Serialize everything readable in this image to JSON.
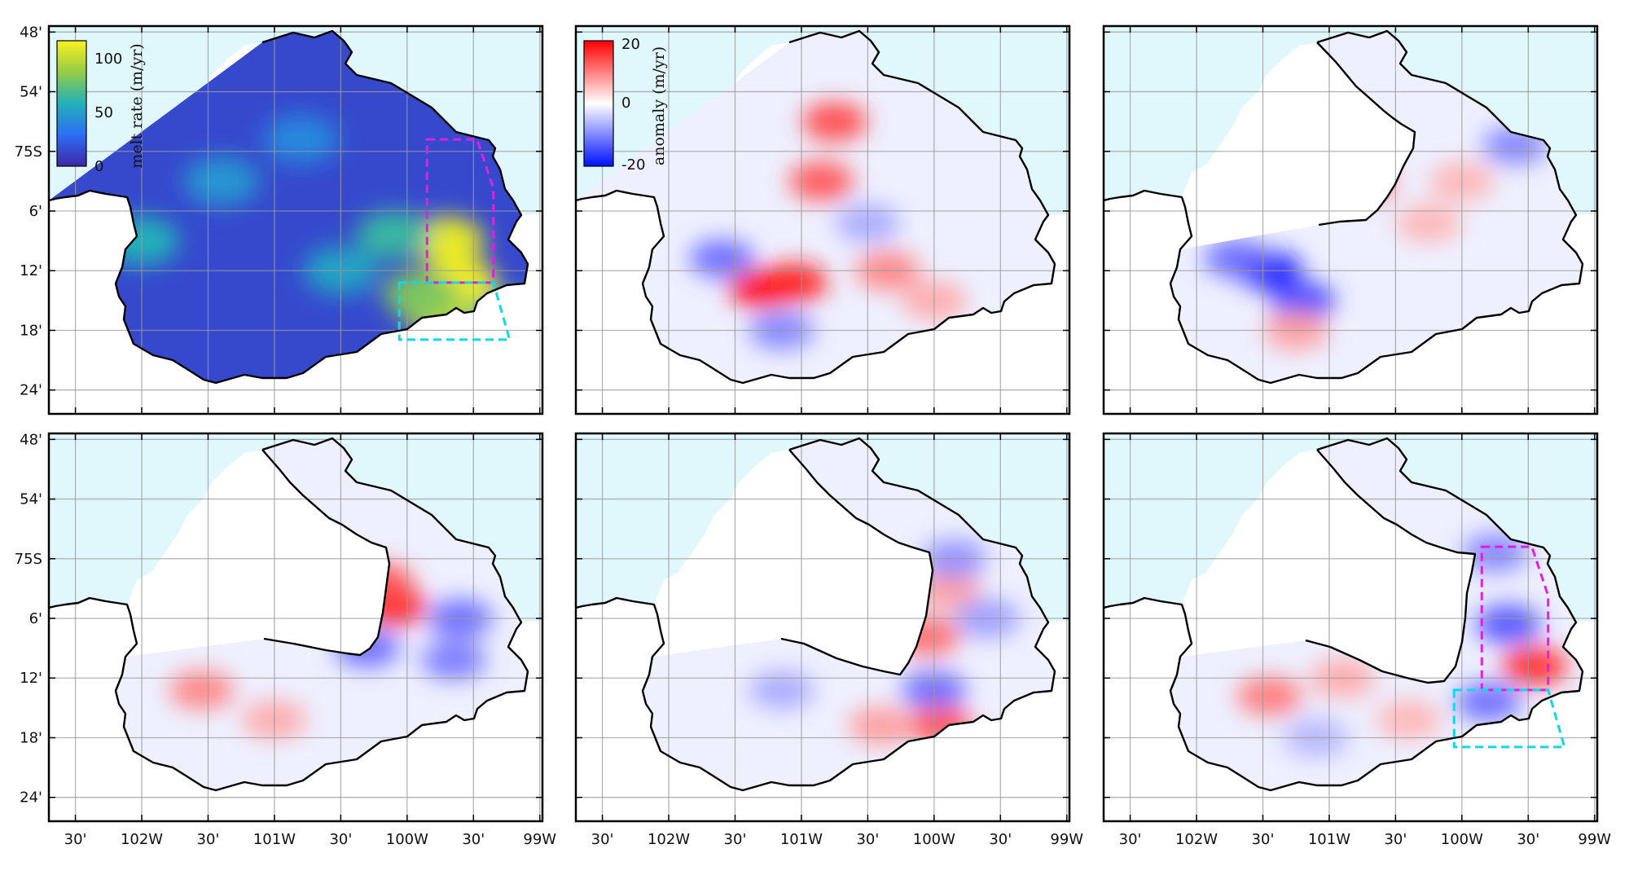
{
  "chart_data": {
    "type": "heatmap",
    "layout": {
      "rows": 2,
      "cols": 3
    },
    "x_ticks": [
      "30'",
      "102W",
      "30'",
      "101W",
      "30'",
      "100W",
      "30'",
      "99W"
    ],
    "y_ticks": [
      "48'",
      "54'",
      "75S",
      "6'",
      "12'",
      "18'",
      "24'"
    ],
    "colors": {
      "ocean": "#e0f7fb",
      "coast": "#000000",
      "melt_low": "#3b3fd0",
      "melt_mid": "#20b0b8",
      "melt_high": "#f5f020",
      "anomaly_neg": "#0010ff",
      "anomaly_zero": "#ffffff",
      "anomaly_pos": "#ff0000",
      "box_magenta": "#e020e0",
      "box_cyan": "#10d8e8",
      "grid": "#9a9a9a"
    },
    "colorbars": [
      {
        "panel": 0,
        "label": "melt rate (m/yr)",
        "ticks": [
          "100",
          "50",
          "0"
        ],
        "range": [
          0,
          120
        ],
        "colormap": "parula"
      },
      {
        "panel": 1,
        "label": "anomaly (m/yr)",
        "ticks": [
          "20",
          "0",
          "-20"
        ],
        "range": [
          -20,
          20
        ],
        "colormap": "bwr"
      }
    ],
    "panels": [
      {
        "id": "p1",
        "field": "melt rate",
        "ice_extent": "full",
        "boxes": true,
        "features": [
          {
            "lon": -99.7,
            "lat": -75.15,
            "v": 0.95
          },
          {
            "lon": -99.6,
            "lat": -75.22,
            "v": 0.98
          },
          {
            "lon": -99.75,
            "lat": -75.27,
            "v": 0.85
          },
          {
            "lon": -99.9,
            "lat": -75.24,
            "v": 0.7
          },
          {
            "lon": -100.1,
            "lat": -75.14,
            "v": 0.55
          },
          {
            "lon": -101.4,
            "lat": -75.05,
            "v": 0.4
          },
          {
            "lon": -102.0,
            "lat": -75.15,
            "v": 0.5
          },
          {
            "lon": -100.8,
            "lat": -74.98,
            "v": 0.35
          },
          {
            "lon": -100.5,
            "lat": -75.2,
            "v": 0.45
          },
          {
            "lon": -99.25,
            "lat": -75.28,
            "v": 0.6
          }
        ]
      },
      {
        "id": "p2",
        "field": "anomaly",
        "ice_extent": "full",
        "boxes": false,
        "features": [
          {
            "lon": -101.3,
            "lat": -75.23,
            "v": 1.0
          },
          {
            "lon": -101.05,
            "lat": -75.22,
            "v": 0.9
          },
          {
            "lon": -100.85,
            "lat": -75.05,
            "v": 0.7
          },
          {
            "lon": -100.75,
            "lat": -74.95,
            "v": 0.75
          },
          {
            "lon": -100.35,
            "lat": -75.2,
            "v": 0.5
          },
          {
            "lon": -100.0,
            "lat": -75.25,
            "v": 0.35
          },
          {
            "lon": -101.6,
            "lat": -75.18,
            "v": -0.6
          },
          {
            "lon": -101.15,
            "lat": -75.3,
            "v": -0.5
          },
          {
            "lon": -100.5,
            "lat": -75.12,
            "v": -0.35
          }
        ]
      },
      {
        "id": "p3",
        "field": "anomaly",
        "ice_extent": "retreat_1",
        "boxes": false,
        "features": [
          {
            "lon": -101.45,
            "lat": -75.2,
            "v": -0.95
          },
          {
            "lon": -101.2,
            "lat": -75.25,
            "v": -0.75
          },
          {
            "lon": -101.7,
            "lat": -75.18,
            "v": -0.6
          },
          {
            "lon": -100.75,
            "lat": -75.05,
            "v": 0.6
          },
          {
            "lon": -100.25,
            "lat": -75.12,
            "v": 0.3
          },
          {
            "lon": -100.0,
            "lat": -75.05,
            "v": 0.3
          },
          {
            "lon": -101.25,
            "lat": -75.3,
            "v": 0.4
          },
          {
            "lon": -99.6,
            "lat": -74.99,
            "v": -0.5
          }
        ]
      },
      {
        "id": "p4",
        "field": "anomaly",
        "ice_extent": "retreat_2",
        "boxes": false,
        "features": [
          {
            "lon": -100.1,
            "lat": -75.08,
            "v": 0.9
          },
          {
            "lon": -100.2,
            "lat": -75.04,
            "v": 0.7
          },
          {
            "lon": -100.3,
            "lat": -75.15,
            "v": -0.6
          },
          {
            "lon": -99.65,
            "lat": -75.17,
            "v": -0.55
          },
          {
            "lon": -101.55,
            "lat": -75.22,
            "v": 0.5
          },
          {
            "lon": -101.0,
            "lat": -75.27,
            "v": 0.35
          },
          {
            "lon": -99.6,
            "lat": -75.1,
            "v": -0.6
          }
        ]
      },
      {
        "id": "p5",
        "field": "anomaly",
        "ice_extent": "retreat_3",
        "boxes": false,
        "features": [
          {
            "lon": -100.05,
            "lat": -75.13,
            "v": 0.6
          },
          {
            "lon": -99.9,
            "lat": -75.05,
            "v": 0.4
          },
          {
            "lon": -100.0,
            "lat": -75.22,
            "v": -0.6
          },
          {
            "lon": -99.95,
            "lat": -75.28,
            "v": 0.7
          },
          {
            "lon": -100.4,
            "lat": -75.28,
            "v": 0.4
          },
          {
            "lon": -101.15,
            "lat": -75.22,
            "v": -0.35
          },
          {
            "lon": -99.6,
            "lat": -75.1,
            "v": -0.4
          },
          {
            "lon": -99.85,
            "lat": -75.0,
            "v": -0.45
          }
        ]
      },
      {
        "id": "p6",
        "field": "anomaly",
        "ice_extent": "retreat_4",
        "boxes": true,
        "features": [
          {
            "lon": -99.65,
            "lat": -75.11,
            "v": -0.7
          },
          {
            "lon": -99.45,
            "lat": -75.18,
            "v": 0.85
          },
          {
            "lon": -99.8,
            "lat": -75.24,
            "v": -0.6
          },
          {
            "lon": -99.75,
            "lat": -74.99,
            "v": -0.5
          },
          {
            "lon": -101.45,
            "lat": -75.23,
            "v": 0.55
          },
          {
            "lon": -100.9,
            "lat": -75.2,
            "v": 0.35
          },
          {
            "lon": -101.1,
            "lat": -75.3,
            "v": -0.3
          },
          {
            "lon": -100.4,
            "lat": -75.27,
            "v": 0.3
          }
        ]
      }
    ]
  }
}
